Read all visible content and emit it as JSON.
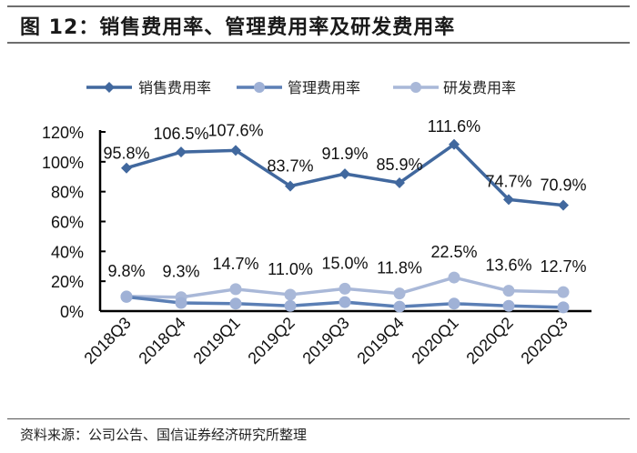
{
  "header": {
    "title": "图 12：销售费用率、管理费用率及研发费用率"
  },
  "footer": {
    "source": "资料来源：公司公告、国信证券经济研究所整理"
  },
  "colors": {
    "sales": "#41689e",
    "admin": "#5b7fb5",
    "rd": "#a9b8d8",
    "admin_marker": "#9fb1d6"
  },
  "chart_data": {
    "type": "line",
    "title": "图 12：销售费用率、管理费用率及研发费用率",
    "xlabel": "",
    "ylabel": "",
    "categories": [
      "2018Q3",
      "2018Q4",
      "2019Q1",
      "2019Q2",
      "2019Q3",
      "2019Q4",
      "2020Q1",
      "2020Q2",
      "2020Q3"
    ],
    "yticks": [
      "0%",
      "20%",
      "40%",
      "60%",
      "80%",
      "100%",
      "120%"
    ],
    "ylim": [
      0,
      120
    ],
    "grid": false,
    "legend_position": "top",
    "series": [
      {
        "name": "销售费用率",
        "marker": "diamond",
        "values": [
          95.8,
          106.5,
          107.6,
          83.7,
          91.9,
          85.9,
          111.6,
          74.7,
          70.9
        ],
        "labels": [
          "95.8%",
          "106.5%",
          "107.6%",
          "83.7%",
          "91.9%",
          "85.9%",
          "111.6%",
          "74.7%",
          "70.9%"
        ]
      },
      {
        "name": "管理费用率",
        "marker": "circle",
        "values": [
          9.5,
          5.5,
          5.0,
          3.5,
          6.0,
          3.0,
          5.0,
          3.5,
          2.5
        ],
        "labels": []
      },
      {
        "name": "研发费用率",
        "marker": "circle",
        "values": [
          9.8,
          9.3,
          14.7,
          11.0,
          15.0,
          11.8,
          22.5,
          13.6,
          12.7
        ],
        "labels": [
          "9.8%",
          "9.3%",
          "14.7%",
          "11.0%",
          "15.0%",
          "11.8%",
          "22.5%",
          "13.6%",
          "12.7%"
        ]
      }
    ]
  }
}
